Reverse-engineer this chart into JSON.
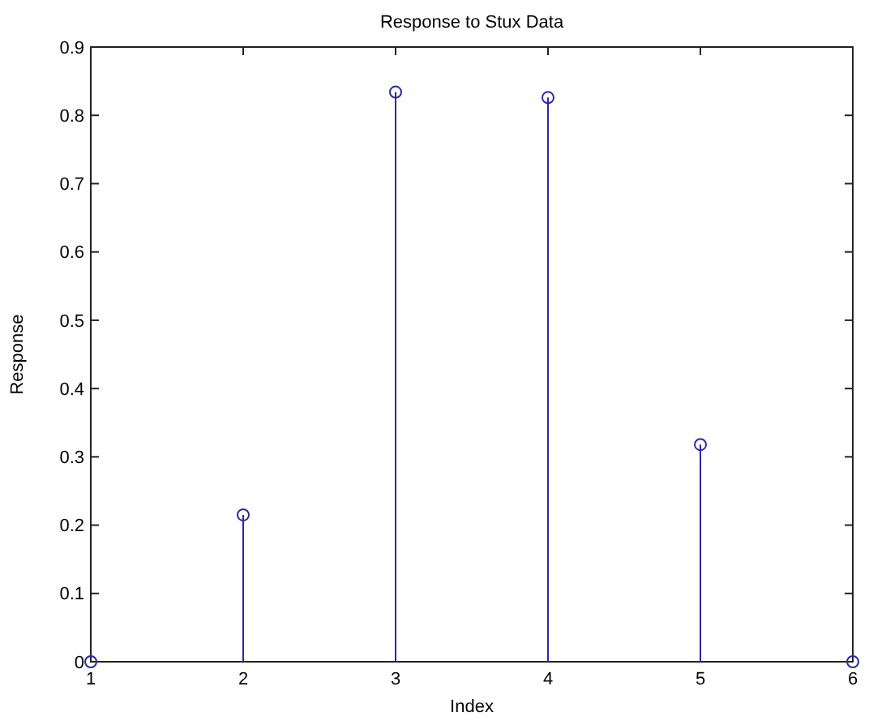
{
  "chart_data": {
    "type": "lollipop",
    "title": "Response to Stux Data",
    "xlabel": "Index",
    "ylabel": "Response",
    "x": [
      1,
      2,
      3,
      4,
      5,
      6
    ],
    "series": [
      {
        "color": "#2828a8",
        "values": [
          0,
          0.215,
          0.834,
          0.826,
          0.318,
          0
        ]
      }
    ],
    "xlim": [
      1,
      6
    ],
    "xticks": [
      1,
      2,
      3,
      4,
      5,
      6
    ],
    "ylim": [
      0,
      0.9
    ],
    "yticks": [
      0,
      0.1,
      0.2,
      0.3,
      0.4,
      0.5,
      0.6,
      0.7,
      0.8,
      0.9
    ],
    "marker": "circle"
  }
}
